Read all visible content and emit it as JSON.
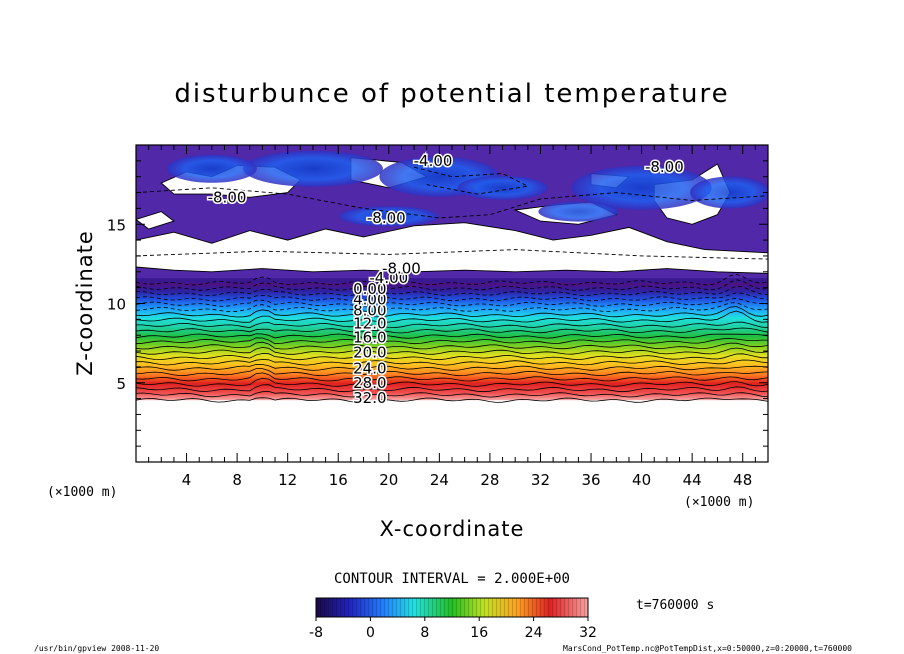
{
  "chart_data": {
    "type": "contour",
    "title": "disturbunce of potential temperature",
    "xlabel": "X-coordinate",
    "ylabel": "Z-coordinate",
    "x_unit": "(×1000 m)",
    "y_unit": "(×1000 m)",
    "xlim": [
      0,
      50
    ],
    "ylim": [
      0,
      20
    ],
    "xticks": [
      4,
      8,
      12,
      16,
      20,
      24,
      28,
      32,
      36,
      40,
      44,
      48
    ],
    "yticks": [
      5,
      10,
      15
    ],
    "contour_interval_text": "CONTOUR INTERVAL = 2.000E+00",
    "contour_levels": [
      -8,
      -6,
      -4,
      -2,
      0,
      2,
      4,
      6,
      8,
      10,
      12,
      14,
      16,
      18,
      20,
      22,
      24,
      26,
      28,
      30,
      32
    ],
    "contour_label_texts": [
      "-8.00",
      "-4.00",
      "0.00",
      "4.00",
      "8.00",
      "12.0",
      "16.0",
      "20.0",
      "24.0",
      "28.0",
      "32.0"
    ],
    "colorbar": {
      "range": [
        -8,
        32
      ],
      "tick_labels": [
        "-8",
        "0",
        "8",
        "16",
        "24",
        "32"
      ],
      "colors": [
        "#1a0a40",
        "#2020c0",
        "#2080ff",
        "#20e0e0",
        "#20c020",
        "#c0e020",
        "#ffa020",
        "#e02020",
        "#f8a0a0"
      ]
    },
    "time_label": "t=760000 s",
    "grid": false,
    "legend": "colorbar-bottom"
  },
  "footer": {
    "program": "/usr/bin/gpview   2008-11-20",
    "source": "MarsCond_PotTemp.nc@PotTempDist,x=0:50000,z=0:20000,t=760000"
  }
}
